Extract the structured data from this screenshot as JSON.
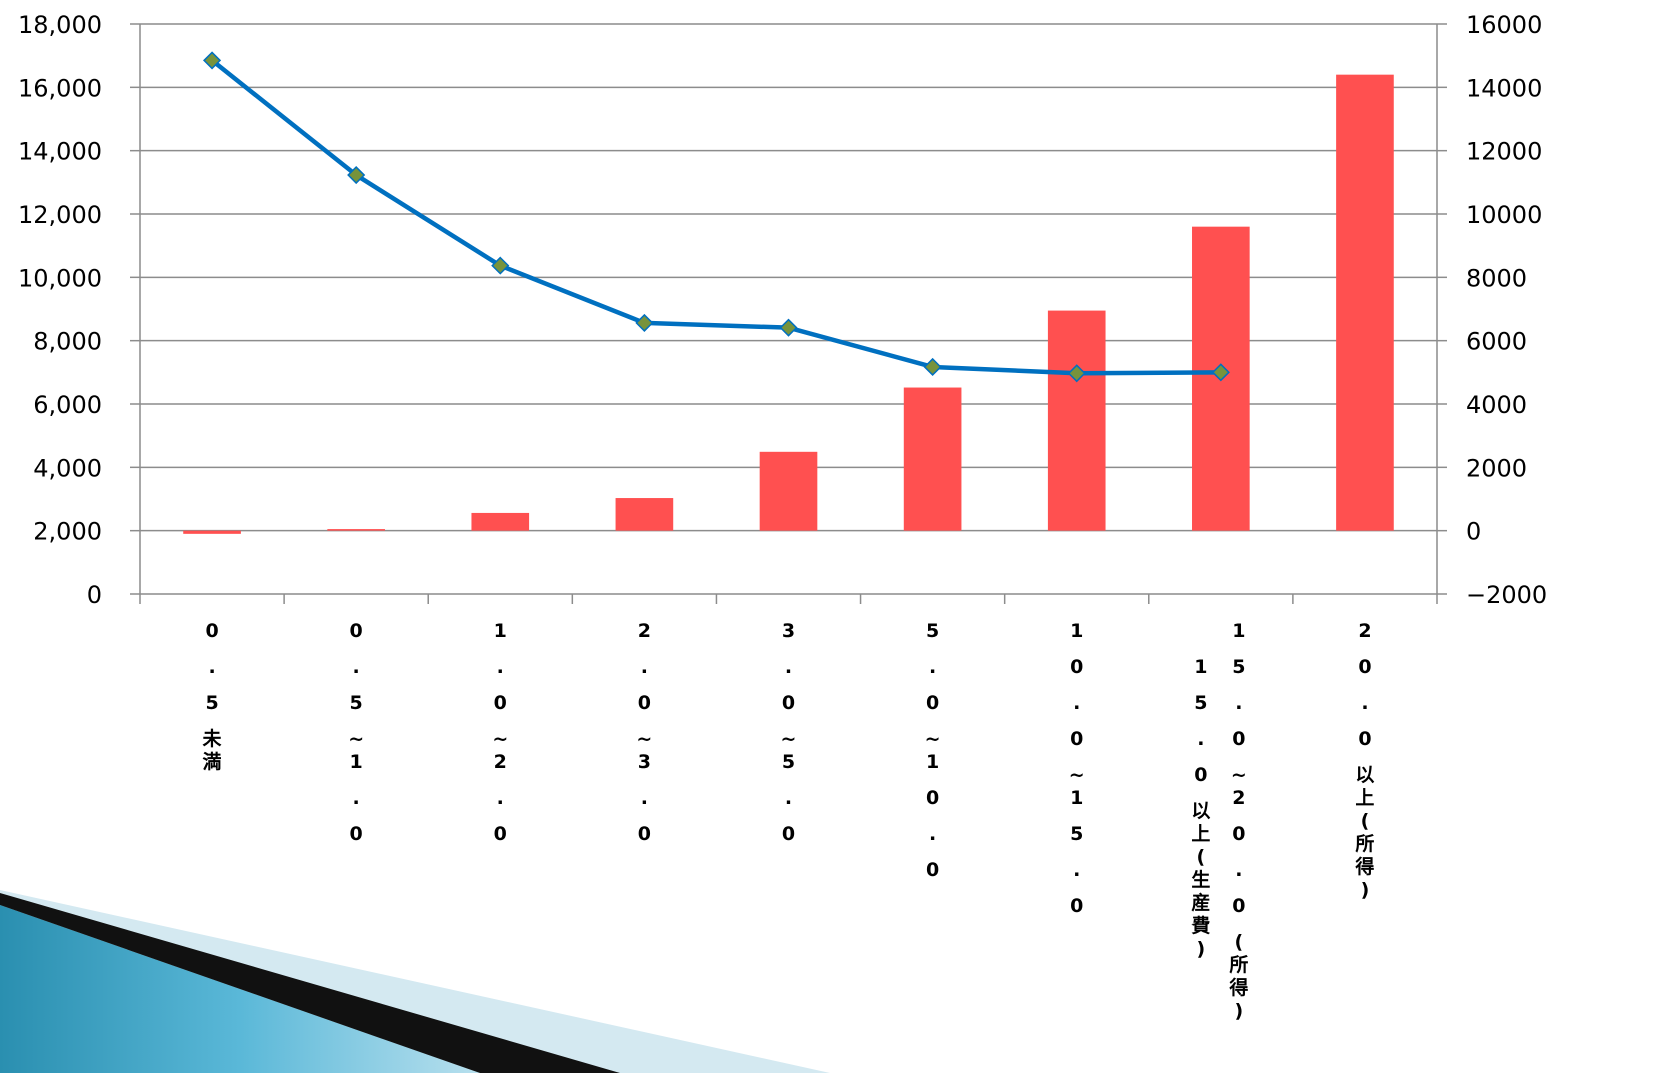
{
  "chart_data": {
    "type": "bar",
    "categories": [
      "0.5未満",
      "0.5~1.0",
      "1.0~2.0",
      "2.0~3.0",
      "3.0~5.0",
      "5.0~10.0",
      "10.0~15.0",
      "15.0~20.0(所得)",
      "20.0以上(所得)"
    ],
    "extra_label": "15.0以上(生産費)",
    "series": [
      {
        "type": "bar",
        "axis": "right",
        "color": "#FF5050",
        "values": [
          -100,
          50,
          560,
          1030,
          2490,
          4520,
          6950,
          9600,
          14400
        ]
      },
      {
        "type": "line",
        "axis": "left",
        "color": "#0070C0",
        "marker_color": "#77933C",
        "values": [
          16850,
          13230,
          10370,
          8560,
          8410,
          7170,
          6970,
          7000,
          null
        ]
      }
    ],
    "left_axis": {
      "ylim": [
        0,
        18000
      ],
      "tick_labels": [
        "0",
        "2,000",
        "4,000",
        "6,000",
        "8,000",
        "10,000",
        "12,000",
        "14,000",
        "16,000",
        "18,000"
      ]
    },
    "right_axis": {
      "ylim": [
        -2000,
        16000
      ],
      "tick_labels": [
        "-2000",
        "0",
        "2000",
        "4000",
        "6000",
        "8000",
        "10000",
        "12000",
        "14000",
        "16000"
      ]
    },
    "grid": true
  }
}
